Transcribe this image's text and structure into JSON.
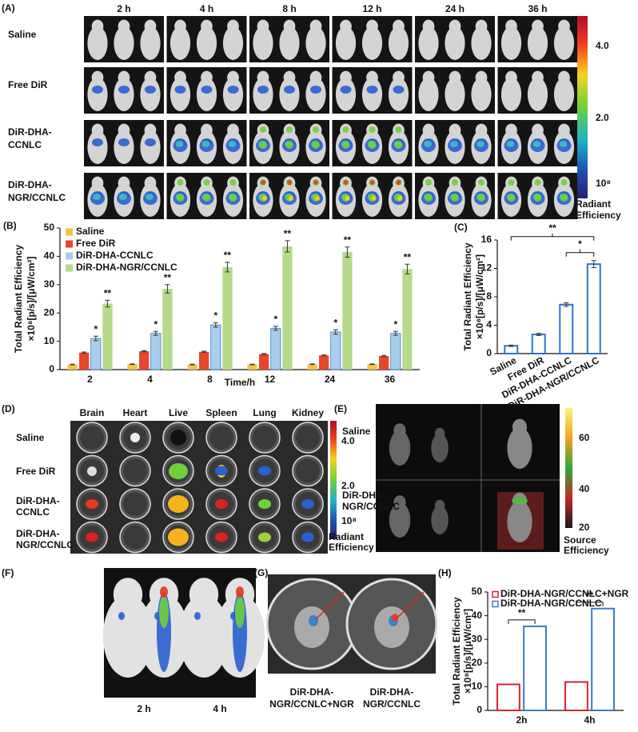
{
  "panels": {
    "A": {
      "label": "(A)",
      "times": [
        "2 h",
        "4 h",
        "8 h",
        "12 h",
        "24 h",
        "36 h"
      ],
      "rows": [
        [
          "Saline"
        ],
        [
          "Free  DiR"
        ],
        [
          "DiR-DHA-",
          "CCNLC"
        ],
        [
          "DiR-DHA-",
          "NGR/CCNLC"
        ]
      ],
      "colorbar_labels": [
        "4.0",
        "2.0",
        "10⁸"
      ],
      "colorbar_title": [
        "Radiant",
        "Efficiency"
      ]
    },
    "D": {
      "label": "(D)",
      "organs": [
        "Brain",
        "Heart",
        "Live",
        "Spleen",
        "Lung",
        "Kidney"
      ],
      "rows": [
        [
          "Saline"
        ],
        [
          "Free  DiR"
        ],
        [
          "DiR-DHA-",
          "CCNLC"
        ],
        [
          "DiR-DHA-",
          "NGR/CCNLC"
        ]
      ],
      "colorbar_labels": [
        "4.0",
        "2.0",
        "10⁸"
      ],
      "colorbar_title": [
        "Radiant",
        "Efficiency"
      ]
    },
    "E": {
      "label": "(E)",
      "rows": [
        [
          "Saline"
        ],
        [
          "DiR-DHA-",
          "NGR/CCNLC"
        ]
      ],
      "colorbar_labels": [
        "60",
        "40",
        "20"
      ],
      "colorbar_title": [
        "Source",
        "Efficiency"
      ]
    },
    "F": {
      "label": "(F)",
      "times": [
        "2 h",
        "4 h"
      ]
    },
    "G": {
      "label": "(G)",
      "groups": [
        [
          "DiR-DHA-",
          "NGR/CCNLC+NGR"
        ],
        [
          "DiR-DHA-",
          "NGR/CCNLC"
        ]
      ]
    }
  },
  "chart_data": [
    {
      "type": "bar",
      "panel_label": "(B)",
      "ylabel": [
        "Total Radiant Efficiency",
        "×10⁸[p/s]/[μW/cm²]"
      ],
      "xlabel": "Time/h",
      "categories": [
        "2",
        "4",
        "8",
        "12",
        "24",
        "36"
      ],
      "series": [
        {
          "name": "Saline",
          "color": "#f7c244",
          "values": [
            1.8,
            1.9,
            1.8,
            1.8,
            1.9,
            1.9
          ],
          "errors": [
            0.1,
            0.1,
            0.1,
            0.1,
            0.1,
            0.1
          ]
        },
        {
          "name": "Free DiR",
          "color": "#e8452c",
          "values": [
            6.0,
            6.5,
            6.3,
            5.5,
            5.0,
            4.8
          ],
          "errors": [
            0.2,
            0.2,
            0.2,
            0.2,
            0.2,
            0.2
          ]
        },
        {
          "name": "DiR-DHA-CCNLC",
          "color": "#a9cdec",
          "values": [
            11.0,
            12.8,
            15.8,
            14.6,
            13.3,
            12.8
          ],
          "errors": [
            0.8,
            0.7,
            0.8,
            0.7,
            0.8,
            0.7
          ],
          "significance": "*"
        },
        {
          "name": "DiR-DHA-NGR/CCNLC",
          "color": "#b6da8c",
          "values": [
            23.3,
            28.5,
            36.2,
            43.5,
            41.5,
            35.5
          ],
          "errors": [
            1.2,
            1.5,
            1.7,
            2.0,
            1.8,
            1.7
          ],
          "significance": "**"
        }
      ],
      "ylim": [
        0,
        50
      ],
      "yticks": [
        0,
        10,
        20,
        30,
        40,
        50
      ],
      "legend": "upper left"
    },
    {
      "type": "bar",
      "panel_label": "(C)",
      "ylabel": [
        "Total Radiant Efficiency",
        "×10⁸[p/s]/[μW/cm²]"
      ],
      "categories": [
        "Saline",
        "Free DiR",
        "DiR-DHA-CCNLC",
        "DiR-DHA-NGR/CCNLC"
      ],
      "values": [
        1.1,
        2.7,
        6.9,
        12.6
      ],
      "errors": [
        0.1,
        0.15,
        0.25,
        0.5
      ],
      "color": "#2f75c8",
      "style": "outline",
      "brackets": [
        {
          "from": 2,
          "to": 3,
          "label": "*"
        },
        {
          "from": 0,
          "to": 3,
          "label": "**"
        }
      ],
      "ylim": [
        0,
        16
      ],
      "yticks": [
        0,
        4,
        8,
        12,
        16
      ]
    },
    {
      "type": "bar",
      "panel_label": "(H)",
      "ylabel": [
        "Total Radiant Efficiency",
        "×10⁸[p/s]/[μW/cm²]"
      ],
      "categories": [
        "2h",
        "4h"
      ],
      "series": [
        {
          "name": "DiR-DHA-NGR/CCNLC+NGR",
          "color": "#d8232f",
          "values": [
            11,
            12
          ]
        },
        {
          "name": "DiR-DHA-NGR/CCNLC",
          "color": "#3a7cc7",
          "values": [
            35.5,
            43
          ]
        }
      ],
      "style": "outline",
      "brackets": [
        {
          "category": 0,
          "label": "**"
        },
        {
          "category": 1,
          "label": "**"
        }
      ],
      "ylim": [
        0,
        50
      ],
      "yticks": [
        0,
        10,
        20,
        30,
        40,
        50
      ],
      "legend": "upper left"
    }
  ]
}
